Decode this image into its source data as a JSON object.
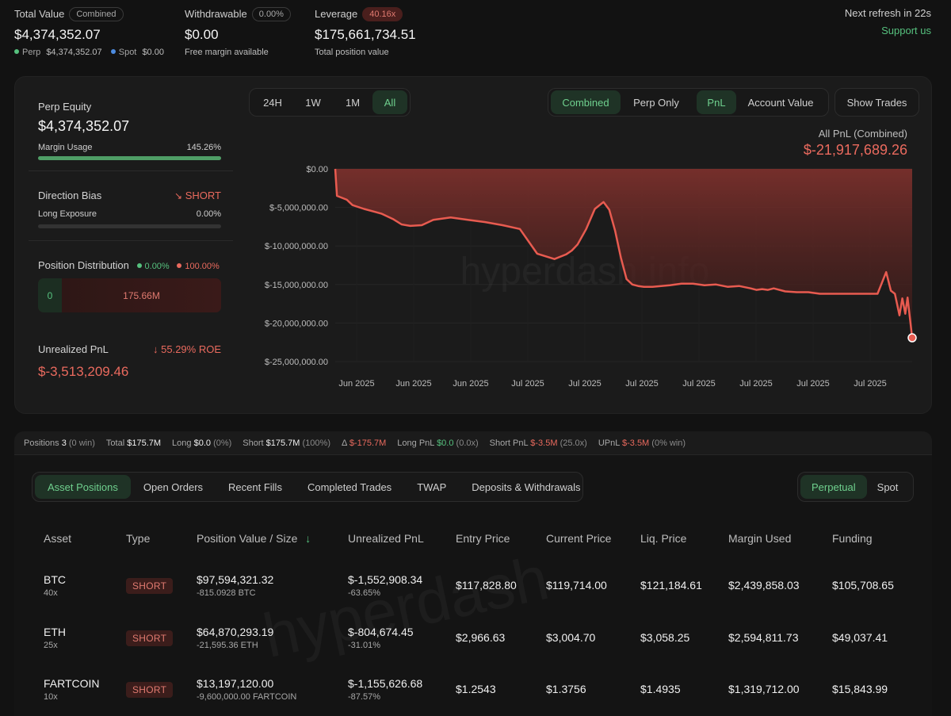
{
  "top": {
    "total_value_label": "Total Value",
    "total_value_pill": "Combined",
    "total_value": "$4,374,352.07",
    "perp_label": "Perp",
    "perp_value": "$4,374,352.07",
    "spot_label": "Spot",
    "spot_value": "$0.00",
    "withdrawable_label": "Withdrawable",
    "withdrawable_pill": "0.00%",
    "withdrawable_value": "$0.00",
    "withdrawable_sub": "Free margin available",
    "leverage_label": "Leverage",
    "leverage_pill": "40.16x",
    "leverage_value": "$175,661,734.51",
    "leverage_sub": "Total position value",
    "refresh_text": "Next refresh in 22s",
    "support_link": "Support us"
  },
  "side": {
    "perp_equity_label": "Perp Equity",
    "perp_equity_value": "$4,374,352.07",
    "margin_usage_label": "Margin Usage",
    "margin_usage_value": "145.26%",
    "margin_usage_fraction": 1.0,
    "direction_label": "Direction Bias",
    "direction_value": "SHORT",
    "long_exposure_label": "Long Exposure",
    "long_exposure_value": "0.00%",
    "long_exposure_fraction": 0.0,
    "distribution_label": "Position Distribution",
    "dist_long_pct": "0.00%",
    "dist_short_pct": "100.00%",
    "dist_long_value": "0",
    "dist_short_value": "175.66M",
    "upnl_label": "Unrealized PnL",
    "upnl_roe": "55.29% ROE",
    "upnl_value": "$-3,513,209.46"
  },
  "controls": {
    "timeframes": [
      "24H",
      "1W",
      "1M",
      "All"
    ],
    "timeframe_active": "All",
    "scope": [
      "Combined",
      "Perp Only"
    ],
    "scope_active": "Combined",
    "metric": [
      "PnL",
      "Account Value"
    ],
    "metric_active": "PnL",
    "show_trades": "Show Trades"
  },
  "chart_header": {
    "title": "All PnL (Combined)",
    "value": "$-21,917,689.26",
    "watermark": "hyperdash.info"
  },
  "chart_data": {
    "type": "area",
    "title": "All PnL (Combined)",
    "ylim": [
      -25000000,
      0
    ],
    "y_ticks": [
      0,
      -5000000,
      -10000000,
      -15000000,
      -20000000,
      -25000000
    ],
    "y_tick_labels": [
      "$0.00",
      "$-5,000,000.00",
      "$-10,000,000.00",
      "$-15,000,000.00",
      "$-20,000,000.00",
      "$-25,000,000.00"
    ],
    "x_tick_labels": [
      "Jun 2025",
      "Jun 2025",
      "Jun 2025",
      "Jul 2025",
      "Jul 2025",
      "Jul 2025",
      "Jul 2025",
      "Jul 2025",
      "Jul 2025",
      "Jul 2025"
    ],
    "x_range": [
      0,
      100
    ],
    "x": [
      0,
      0.3,
      1,
      2,
      3,
      5,
      7,
      8,
      10,
      11.5,
      13,
      15,
      17,
      20,
      23,
      26,
      29,
      32,
      35,
      38,
      40,
      41,
      42,
      43.5,
      45,
      46.5,
      47.5,
      48.5,
      49.5,
      50.5,
      51.5,
      52.5,
      53.5,
      55,
      58,
      60,
      62,
      64,
      66,
      68,
      70,
      72,
      73,
      74,
      75,
      76,
      78,
      80,
      82,
      84,
      86,
      88,
      90,
      92,
      94,
      95.5,
      96.3,
      97,
      97.8,
      98.3,
      98.8,
      99.2,
      99.6,
      100
    ],
    "y": [
      0,
      -3500000,
      -3700000,
      -4000000,
      -4700000,
      -5200000,
      -5600000,
      -5800000,
      -6500000,
      -7200000,
      -7400000,
      -7300000,
      -6600000,
      -6300000,
      -6600000,
      -6900000,
      -7300000,
      -7800000,
      -11000000,
      -11700000,
      -11100000,
      -10600000,
      -9800000,
      -7800000,
      -5200000,
      -4300000,
      -5300000,
      -8000000,
      -11500000,
      -14300000,
      -15000000,
      -15200000,
      -15300000,
      -15300000,
      -15100000,
      -14900000,
      -14900000,
      -15100000,
      -15000000,
      -15300000,
      -15200000,
      -15500000,
      -15700000,
      -15600000,
      -15700000,
      -15500000,
      -15900000,
      -16000000,
      -16000000,
      -16200000,
      -16200000,
      -16200000,
      -16200000,
      -16200000,
      -16200000,
      -13400000,
      -15800000,
      -16200000,
      -19000000,
      -16800000,
      -18800000,
      -16700000,
      -19300000,
      -21917689
    ],
    "color": "#e85b50",
    "grid": true
  },
  "strip": {
    "positions_label": "Positions",
    "positions_value": "3",
    "positions_sub": "(0 win)",
    "total_label": "Total",
    "total_value": "$175.7M",
    "long_label": "Long",
    "long_value": "$0.0",
    "long_sub": "(0%)",
    "short_label": "Short",
    "short_value": "$175.7M",
    "short_sub": "(100%)",
    "delta_label": "Δ",
    "delta_value": "$-175.7M",
    "long_pnl_label": "Long PnL",
    "long_pnl_value": "$0.0",
    "long_pnl_sub": "(0.0x)",
    "short_pnl_label": "Short PnL",
    "short_pnl_value": "$-3.5M",
    "short_pnl_sub": "(25.0x)",
    "upnl_label": "UPnL",
    "upnl_value": "$-3.5M",
    "upnl_sub": "(0% win)"
  },
  "tabs": {
    "items": [
      "Asset Positions",
      "Open Orders",
      "Recent Fills",
      "Completed Trades",
      "TWAP",
      "Deposits & Withdrawals"
    ],
    "active": "Asset Positions",
    "market": [
      "Perpetual",
      "Spot"
    ],
    "market_active": "Perpetual"
  },
  "table": {
    "headers": [
      "Asset",
      "Type",
      "Position Value / Size",
      "Unrealized PnL",
      "Entry Price",
      "Current Price",
      "Liq. Price",
      "Margin Used",
      "Funding"
    ],
    "sort_icon": "arrow-down-icon",
    "rows": [
      {
        "asset": "BTC",
        "leverage": "40x",
        "type": "SHORT",
        "value": "$97,594,321.32",
        "size": "-815.0928 BTC",
        "upnl": "$-1,552,908.34",
        "upnl_pct": "-63.65%",
        "entry": "$117,828.80",
        "current": "$119,714.00",
        "liq": "$121,184.61",
        "margin": "$2,439,858.03",
        "funding": "$105,708.65"
      },
      {
        "asset": "ETH",
        "leverage": "25x",
        "type": "SHORT",
        "value": "$64,870,293.19",
        "size": "-21,595.36 ETH",
        "upnl": "$-804,674.45",
        "upnl_pct": "-31.01%",
        "entry": "$2,966.63",
        "current": "$3,004.70",
        "liq": "$3,058.25",
        "margin": "$2,594,811.73",
        "funding": "$49,037.41"
      },
      {
        "asset": "FARTCOIN",
        "leverage": "10x",
        "type": "SHORT",
        "value": "$13,197,120.00",
        "size": "-9,600,000.00 FARTCOIN",
        "upnl": "$-1,155,626.68",
        "upnl_pct": "-87.57%",
        "entry": "$1.2543",
        "current": "$1.3756",
        "liq": "$1.4935",
        "margin": "$1,319,712.00",
        "funding": "$15,843.99"
      }
    ],
    "watermark": "hyperdash"
  }
}
